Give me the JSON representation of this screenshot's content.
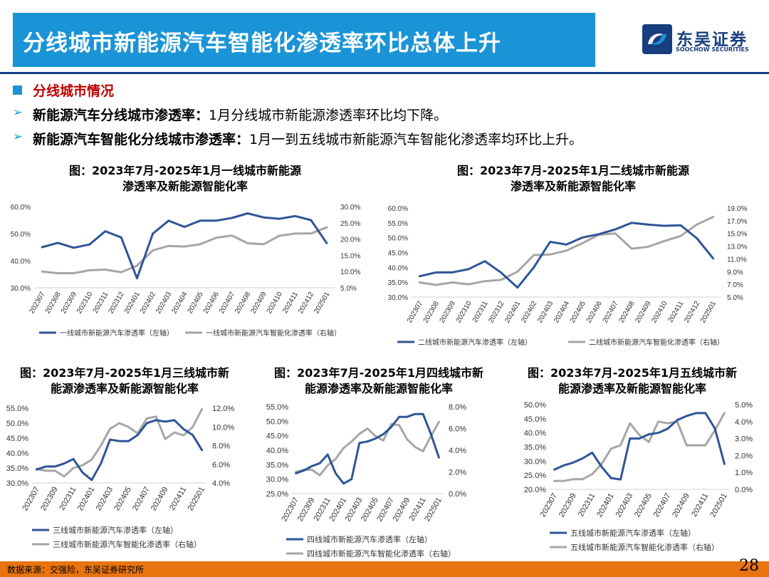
{
  "header": {
    "title": "分线城市新能源汽车智能化渗透率环比总体上升",
    "logo_cn": "东吴证券",
    "logo_en": "SOOCHOW SECURITIES"
  },
  "section": {
    "heading": "分线城市情况"
  },
  "bullets": [
    {
      "bold": "新能源汽车分线城市渗透率：",
      "text": "1月分线城市新能源渗透率环比均下降。"
    },
    {
      "bold": "新能源汽车智能化分线城市渗透率：",
      "text": "1月一到五线城市新能源汽车智能化渗透率均环比上升。"
    }
  ],
  "colors": {
    "series_left": "#2f5597",
    "series_right": "#a6a6a6",
    "accent": "#1a94d6",
    "footer": "#e8740f"
  },
  "chart_data": [
    {
      "type": "line",
      "title_line1": "图：2023年7月-2025年1月一线城市新能源",
      "title_line2": "渗透率及新能源智能化率",
      "x": [
        "202307",
        "202308",
        "202309",
        "202310",
        "202311",
        "202312",
        "202401",
        "202402",
        "202403",
        "202404",
        "202405",
        "202406",
        "202407",
        "202408",
        "202409",
        "202410",
        "202411",
        "202412",
        "202501"
      ],
      "y_left_ticks": [
        "30.0%",
        "40.0%",
        "50.0%",
        "60.0%"
      ],
      "y_left_range": [
        30,
        60
      ],
      "y_right_ticks": [
        "5.0%",
        "10.0%",
        "15.0%",
        "20.0%",
        "25.0%",
        "30.0%"
      ],
      "y_right_range": [
        5,
        30
      ],
      "series": [
        {
          "name": "一线城市新能源汽车渗透率（左轴）",
          "axis": "left",
          "values": [
            45.0,
            46.6,
            44.8,
            46.0,
            50.9,
            48.6,
            33.5,
            50.0,
            54.8,
            52.5,
            54.8,
            54.8,
            55.8,
            57.5,
            56.0,
            55.5,
            56.5,
            55.0,
            46.5
          ]
        },
        {
          "name": "一线城市新能源汽车智能化渗透率（右轴）",
          "axis": "right",
          "values": [
            10.0,
            9.5,
            9.5,
            10.4,
            10.6,
            9.8,
            11.8,
            16.5,
            17.9,
            17.7,
            18.4,
            20.4,
            21.1,
            18.7,
            18.4,
            21.0,
            21.7,
            21.7,
            23.6
          ]
        }
      ]
    },
    {
      "type": "line",
      "title_line1": "图：2023年7月-2025年1月二线城市新能源",
      "title_line2": "渗透率及新能源智能化率",
      "x": [
        "202307",
        "202308",
        "202309",
        "202310",
        "202311",
        "202312",
        "202401",
        "202402",
        "202403",
        "202404",
        "202405",
        "202406",
        "202407",
        "202408",
        "202409",
        "202410",
        "202411",
        "202412",
        "202501"
      ],
      "y_left_ticks": [
        "30.0%",
        "35.0%",
        "40.0%",
        "45.0%",
        "50.0%",
        "55.0%",
        "60.0%"
      ],
      "y_left_range": [
        30,
        60
      ],
      "y_right_ticks": [
        "5.0%",
        "7.0%",
        "9.0%",
        "11.0%",
        "13.0%",
        "15.0%",
        "17.0%",
        "19.0%"
      ],
      "y_right_range": [
        5,
        19
      ],
      "series": [
        {
          "name": "二线城市新能源汽车渗透率（左轴）",
          "axis": "left",
          "values": [
            37.0,
            38.3,
            38.3,
            39.4,
            42.1,
            38.2,
            33.2,
            40.0,
            48.6,
            47.7,
            50.1,
            51.2,
            52.8,
            55.0,
            54.4,
            54.0,
            54.2,
            49.8,
            43.0
          ]
        },
        {
          "name": "二线城市新能源汽车智能化渗透率（右轴）",
          "axis": "right",
          "values": [
            7.3,
            6.9,
            7.3,
            7.0,
            7.5,
            7.7,
            9.0,
            11.6,
            11.7,
            12.3,
            13.5,
            14.8,
            15.0,
            12.6,
            12.9,
            13.8,
            14.6,
            16.4,
            17.6
          ]
        }
      ]
    },
    {
      "type": "line",
      "title_line1": "图：2023年7月-2025年1月三线城市新",
      "title_line2": "能源渗透率及新能源智能化率",
      "x": [
        "202307",
        "202308",
        "202309",
        "202310",
        "202311",
        "202312",
        "202401",
        "202402",
        "202403",
        "202404",
        "202405",
        "202406",
        "202407",
        "202408",
        "202409",
        "202410",
        "202411",
        "202412",
        "202501"
      ],
      "x_tick_labels": [
        "202307",
        "202309",
        "202311",
        "202401",
        "202403",
        "202405",
        "202407",
        "202409",
        "202411",
        "202501"
      ],
      "y_left_ticks": [
        "30.0%",
        "35.0%",
        "40.0%",
        "45.0%",
        "50.0%",
        "55.0%"
      ],
      "y_left_range": [
        30,
        55
      ],
      "y_right_ticks": [
        "4.0%",
        "6.0%",
        "8.0%",
        "10.0%",
        "12.0%"
      ],
      "y_right_range": [
        4,
        12
      ],
      "series": [
        {
          "name": "三线城市新能源汽车渗透率（左轴）",
          "axis": "left",
          "values": [
            34.5,
            35.5,
            35.5,
            36.5,
            38.0,
            33.5,
            31.0,
            36.5,
            44.5,
            44.0,
            44.0,
            46.0,
            50.0,
            51.0,
            50.5,
            51.0,
            48.0,
            46.0,
            41.0
          ]
        },
        {
          "name": "三线城市新能源汽车智能化渗透率（右轴）",
          "axis": "right",
          "values": [
            5.5,
            5.3,
            5.3,
            4.7,
            5.6,
            5.9,
            6.5,
            8.0,
            9.8,
            10.4,
            10.0,
            9.3,
            10.9,
            11.1,
            8.7,
            9.4,
            9.1,
            10.0,
            11.9
          ]
        }
      ]
    },
    {
      "type": "line",
      "title_line1": "图：2023年7月-2025年1月四线城市新",
      "title_line2": "能源渗透率及新能源智能化率",
      "x": [
        "202307",
        "202308",
        "202309",
        "202310",
        "202311",
        "202312",
        "202401",
        "202402",
        "202403",
        "202404",
        "202405",
        "202406",
        "202407",
        "202408",
        "202409",
        "202410",
        "202411",
        "202412",
        "202501"
      ],
      "x_tick_labels": [
        "202307",
        "202309",
        "202311",
        "202401",
        "202403",
        "202405",
        "202407",
        "202409",
        "202411",
        "202501"
      ],
      "y_left_ticks": [
        "25.0%",
        "30.0%",
        "35.0%",
        "40.0%",
        "45.0%",
        "50.0%",
        "55.0%"
      ],
      "y_left_range": [
        25,
        55
      ],
      "y_right_ticks": [
        "0.0%",
        "2.0%",
        "4.0%",
        "6.0%",
        "8.0%"
      ],
      "y_right_range": [
        0,
        8
      ],
      "series": [
        {
          "name": "四线城市新能源汽车渗透率（左轴）",
          "axis": "left",
          "values": [
            32.0,
            33.0,
            34.5,
            35.5,
            38.5,
            32.0,
            28.5,
            30.0,
            42.5,
            43.0,
            44.0,
            45.5,
            48.0,
            51.5,
            51.5,
            52.5,
            52.5,
            45.5,
            37.5
          ]
        },
        {
          "name": "四线城市新能源汽车智能化渗透率（右轴）",
          "axis": "right",
          "values": [
            2.0,
            2.2,
            2.2,
            1.7,
            2.6,
            3.2,
            4.2,
            4.8,
            5.5,
            6.0,
            5.3,
            4.9,
            6.4,
            6.3,
            5.0,
            4.3,
            3.9,
            5.3,
            6.6
          ]
        }
      ]
    },
    {
      "type": "line",
      "title_line1": "图：2023年7月-2025年1月五线城市新",
      "title_line2": "能源渗透率及新能源智能化率",
      "x": [
        "202307",
        "202308",
        "202309",
        "202310",
        "202311",
        "202312",
        "202401",
        "202402",
        "202403",
        "202404",
        "202405",
        "202406",
        "202407",
        "202408",
        "202409",
        "202410",
        "202411",
        "202412",
        "202501"
      ],
      "x_tick_labels": [
        "202307",
        "202309",
        "202311",
        "202401",
        "202403",
        "202405",
        "202407",
        "202409",
        "202411",
        "202501"
      ],
      "y_left_ticks": [
        "20.0%",
        "25.0%",
        "30.0%",
        "35.0%",
        "40.0%",
        "45.0%",
        "50.0%"
      ],
      "y_left_range": [
        20,
        50
      ],
      "y_right_ticks": [
        "0.0%",
        "1.0%",
        "2.0%",
        "3.0%",
        "4.0%",
        "5.0%"
      ],
      "y_right_range": [
        0,
        5
      ],
      "series": [
        {
          "name": "五线城市新能源汽车渗透率（左轴）",
          "axis": "left",
          "values": [
            27.0,
            28.5,
            29.5,
            31.0,
            33.0,
            28.0,
            24.0,
            23.5,
            38.0,
            38.0,
            39.5,
            40.0,
            41.5,
            44.5,
            46.0,
            47.0,
            47.0,
            41.5,
            29.0
          ]
        },
        {
          "name": "五线城市新能源汽车智能化渗透率（右轴）",
          "axis": "right",
          "values": [
            0.5,
            0.5,
            0.6,
            0.6,
            0.9,
            1.5,
            2.4,
            2.6,
            3.9,
            3.2,
            2.8,
            4.0,
            3.9,
            4.0,
            2.6,
            2.6,
            2.6,
            3.5,
            4.5
          ]
        }
      ]
    }
  ],
  "footer": {
    "source": "数据来源：交强险，东吴证券研究所",
    "page_number": "28"
  }
}
